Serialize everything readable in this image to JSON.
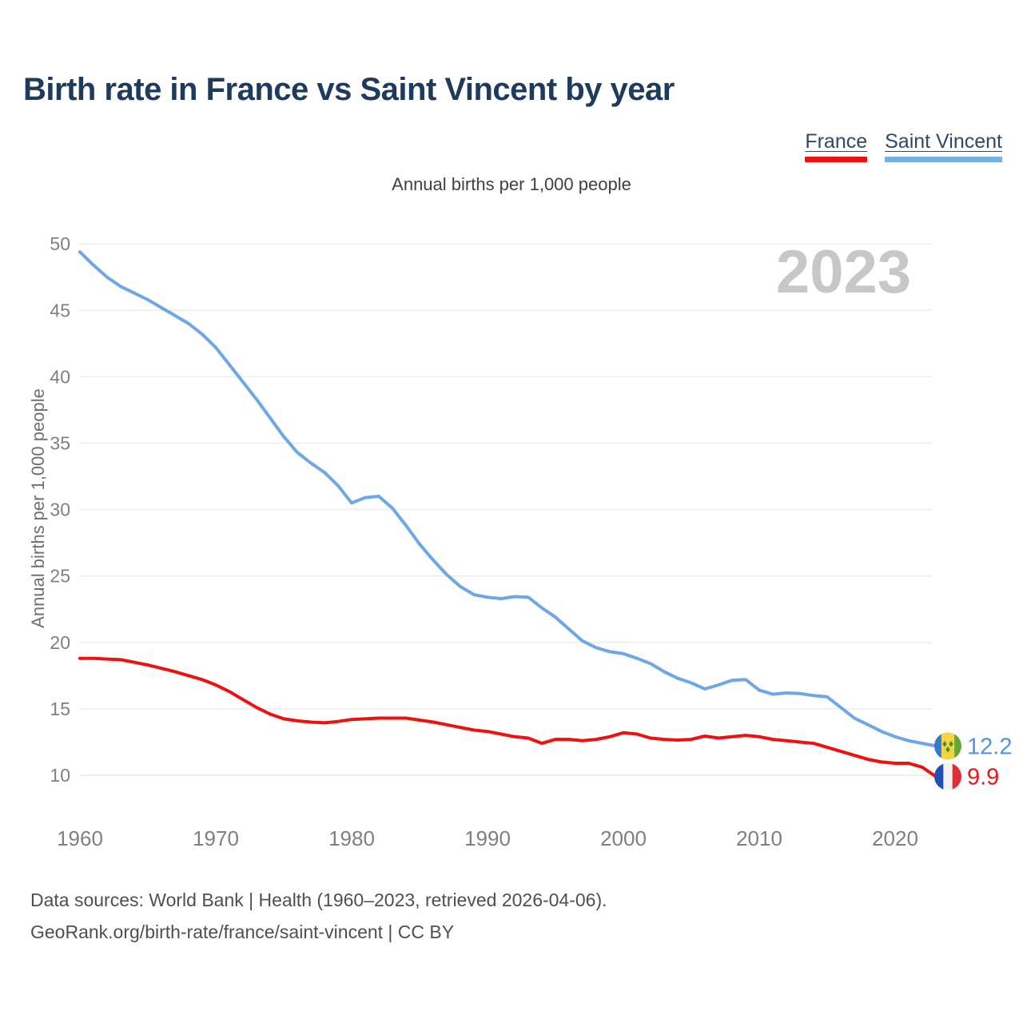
{
  "title": "Birth rate in France vs Saint Vincent by year",
  "subtitle": "Annual births per 1,000 people",
  "watermark": "2023",
  "legend": [
    {
      "label": "France",
      "color": "#ee1111"
    },
    {
      "label": "Saint Vincent",
      "color": "#74b0e4"
    }
  ],
  "footer": {
    "line1": "Data sources: World Bank | Health (1960–2023, retrieved 2026-04-06).",
    "line2": "GeoRank.org/birth-rate/france/saint-vincent | CC BY"
  },
  "icons": {
    "france-flag-icon": {
      "stripe_colors": [
        "#2150b4",
        "#f2f2f2",
        "#dd2e3a"
      ],
      "stripe_widths": [
        0.333,
        0.334,
        0.333
      ]
    },
    "saint-vincent-flag-icon": {
      "stripe_colors": [
        "#3379d0",
        "#f5d53f",
        "#66a63e"
      ],
      "stripe_widths": [
        0.26,
        0.48,
        0.26
      ],
      "diamond_color": "#3f8f3b"
    }
  },
  "chart_data": {
    "type": "line",
    "title": "Birth rate in France vs Saint Vincent by year",
    "xlabel": "",
    "ylabel": "Annual births per 1,000 people",
    "grid": "horizontal",
    "legend_position": "top-right",
    "xlim": [
      1960,
      2023
    ],
    "ylim": [
      9,
      50.5
    ],
    "xticks": [
      1960,
      1970,
      1980,
      1990,
      2000,
      2010,
      2020
    ],
    "yticks": [
      10,
      15,
      20,
      25,
      30,
      35,
      40,
      45,
      50
    ],
    "x": [
      1960,
      1961,
      1962,
      1963,
      1964,
      1965,
      1966,
      1967,
      1968,
      1969,
      1970,
      1971,
      1972,
      1973,
      1974,
      1975,
      1976,
      1977,
      1978,
      1979,
      1980,
      1981,
      1982,
      1983,
      1984,
      1985,
      1986,
      1987,
      1988,
      1989,
      1990,
      1991,
      1992,
      1993,
      1994,
      1995,
      1996,
      1997,
      1998,
      1999,
      2000,
      2001,
      2002,
      2003,
      2004,
      2005,
      2006,
      2007,
      2008,
      2009,
      2010,
      2011,
      2012,
      2013,
      2014,
      2015,
      2016,
      2017,
      2018,
      2019,
      2020,
      2021,
      2022,
      2023
    ],
    "series": [
      {
        "name": "France",
        "color": "#ee1111",
        "end_label": "9.9",
        "end_label_color": "#ee1417",
        "icon": "france-flag-icon",
        "values": [
          18.8,
          18.8,
          18.75,
          18.7,
          18.5,
          18.3,
          18.05,
          17.8,
          17.5,
          17.2,
          16.8,
          16.3,
          15.7,
          15.1,
          14.6,
          14.25,
          14.1,
          14.0,
          13.95,
          14.05,
          14.2,
          14.25,
          14.3,
          14.3,
          14.3,
          14.15,
          14.0,
          13.8,
          13.6,
          13.4,
          13.3,
          13.1,
          12.9,
          12.8,
          12.4,
          12.7,
          12.7,
          12.6,
          12.7,
          12.9,
          13.2,
          13.1,
          12.8,
          12.7,
          12.65,
          12.7,
          12.95,
          12.8,
          12.9,
          13.0,
          12.9,
          12.7,
          12.6,
          12.5,
          12.4,
          12.1,
          11.8,
          11.5,
          11.2,
          11.0,
          10.9,
          10.9,
          10.6,
          9.9
        ]
      },
      {
        "name": "Saint Vincent",
        "color": "#6ea7e6",
        "end_label": "12.2",
        "end_label_color": "#4d95e0",
        "icon": "saint-vincent-flag-icon",
        "values": [
          49.4,
          48.4,
          47.5,
          46.8,
          46.3,
          45.8,
          45.2,
          44.6,
          44.0,
          43.2,
          42.2,
          40.9,
          39.6,
          38.3,
          36.9,
          35.5,
          34.3,
          33.5,
          32.8,
          31.8,
          30.5,
          30.9,
          31.0,
          30.1,
          28.8,
          27.4,
          26.2,
          25.1,
          24.2,
          23.6,
          23.4,
          23.3,
          23.45,
          23.4,
          22.6,
          21.9,
          21.0,
          20.1,
          19.6,
          19.3,
          19.15,
          18.8,
          18.4,
          17.8,
          17.3,
          16.95,
          16.5,
          16.8,
          17.15,
          17.2,
          16.4,
          16.1,
          16.2,
          16.15,
          16.0,
          15.9,
          15.1,
          14.3,
          13.8,
          13.3,
          12.9,
          12.6,
          12.4,
          12.2
        ]
      }
    ]
  }
}
